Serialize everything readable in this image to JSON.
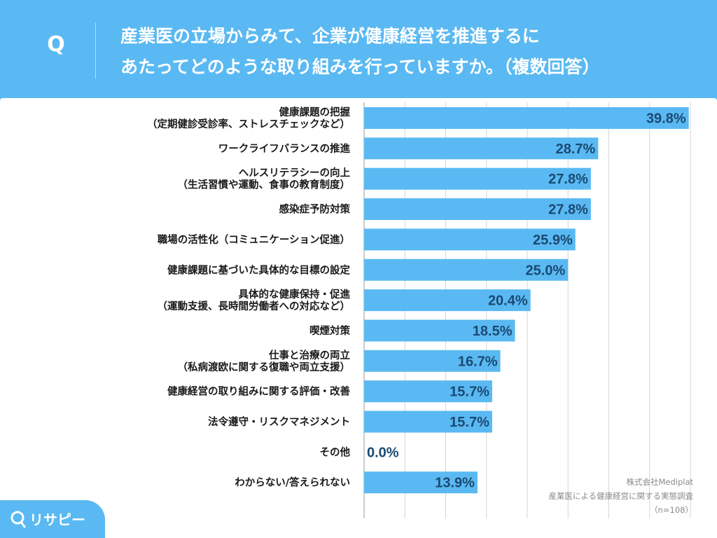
{
  "header": {
    "badge": "Q",
    "question_line1": "産業医の立場からみて、企業が健康経営を推進するに",
    "question_line2": "あたってどのような取り組みを行っていますか。（複数回答）"
  },
  "source": {
    "company": "株式会社Mediplat",
    "survey": "産業医による健康経営に関する実態調査",
    "sample": "（n=108）"
  },
  "logo": {
    "text": "リサピー"
  },
  "colors": {
    "bar": "#5ab9f2",
    "background": "#5ab9f2",
    "grid": "#d6d6d6",
    "value_text": "#1a4a72"
  },
  "chart_data": {
    "type": "bar",
    "orientation": "horizontal",
    "title": "産業医の立場からみて、企業が健康経営を推進するにあたってどのような取り組みを行っていますか。（複数回答）",
    "unit": "%",
    "xlim": [
      0,
      40
    ],
    "grid": true,
    "categories": [
      [
        "健康課題の把握",
        "（定期健診受診率、ストレスチェックなど）"
      ],
      [
        "ワークライフバランスの推進"
      ],
      [
        "ヘルスリテラシーの向上",
        "（生活習慣や運動、食事の教育制度）"
      ],
      [
        "感染症予防対策"
      ],
      [
        "職場の活性化（コミュニケーション促進）"
      ],
      [
        "健康課題に基づいた具体的な目標の設定"
      ],
      [
        "具体的な健康保持・促進",
        "（運動支援、長時間労働者への対応など）"
      ],
      [
        "喫煙対策"
      ],
      [
        "仕事と治療の両立",
        "（私病渡欧に関する復職や両立支援）"
      ],
      [
        "健康経営の取り組みに関する評価・改善"
      ],
      [
        "法令遵守・リスクマネジメント"
      ],
      [
        "その他"
      ],
      [
        "わからない/答えられない"
      ]
    ],
    "values": [
      39.8,
      28.7,
      27.8,
      27.8,
      25.9,
      25.0,
      20.4,
      18.5,
      16.7,
      15.7,
      15.7,
      0.0,
      13.9
    ],
    "value_labels": [
      "39.8%",
      "28.7%",
      "27.8%",
      "27.8%",
      "25.9%",
      "25.0%",
      "20.4%",
      "18.5%",
      "16.7%",
      "15.7%",
      "15.7%",
      "0.0%",
      "13.9%"
    ]
  }
}
